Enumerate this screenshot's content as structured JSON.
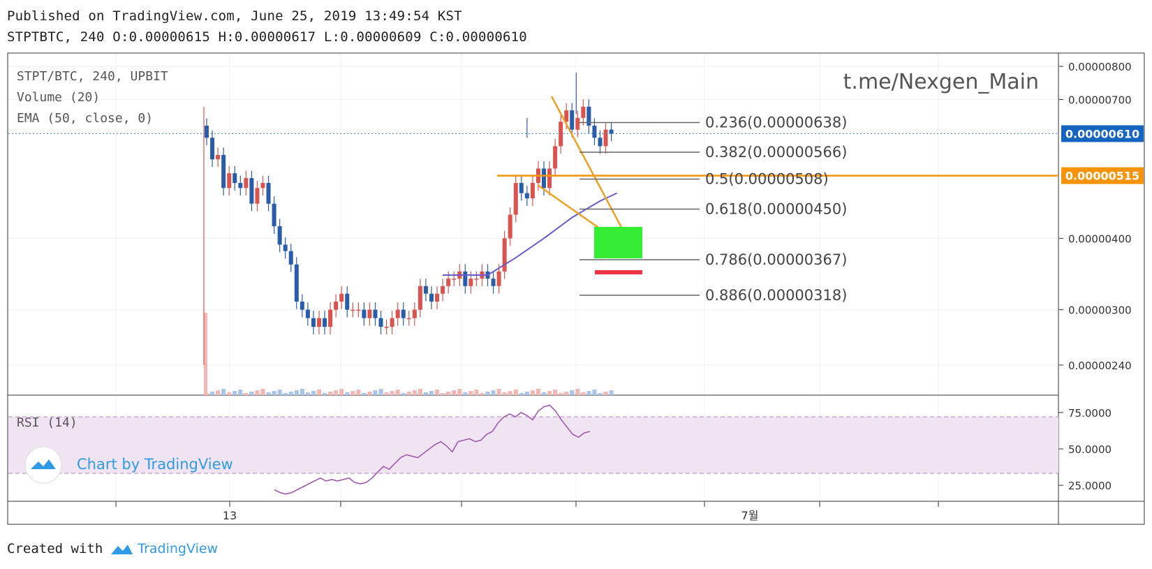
{
  "header": {
    "published": "Published on TradingView.com, June 25, 2019 13:49:54 KST",
    "ohlc": "STPTBTC, 240 O:0.00000615 H:0.00000617 L:0.00000609 C:0.00000610"
  },
  "footer": {
    "created_with": "Created with",
    "brand": "TradingView"
  },
  "watermark": "t.me/Nexgen_Main",
  "badge_text": "Chart by TradingView",
  "colors": {
    "up": "#d9534f",
    "down": "#2a5caa",
    "ema": "#6a5acd",
    "rsi": "#a05ab0",
    "fib": "#f0a020",
    "price_tag": "#1565c0",
    "orange_tag": "#f5930a",
    "target": "#33ee33",
    "stop": "#ee3344"
  },
  "chart_data": [
    {
      "type": "candlestick",
      "symbol": "STPT/BTC, 240, UPBIT",
      "legend": [
        "STPT/BTC, 240, UPBIT",
        "Volume (20)",
        "EMA (50, close, 0)"
      ],
      "y_scale": "log",
      "ylim": [
        2.15e-06,
        8.3e-06
      ],
      "y_ticks": [
        "0.00000800",
        "0.00000700",
        "0.00000400",
        "0.00000300",
        "0.00000240"
      ],
      "x_ticks": [
        "13",
        "7월"
      ],
      "last_price": "0.00000610",
      "horizontal_line": "0.00000515",
      "fib_levels": [
        {
          "label": "0.236(0.00000638)",
          "value": 6.38e-06
        },
        {
          "label": "0.382(0.00000566)",
          "value": 5.66e-06
        },
        {
          "label": "0.5(0.00000508)",
          "value": 5.08e-06
        },
        {
          "label": "0.618(0.00000450)",
          "value": 4.5e-06
        },
        {
          "label": "0.786(0.00000367)",
          "value": 3.67e-06
        },
        {
          "label": "0.886(0.00000318)",
          "value": 3.18e-06
        }
      ],
      "candles_close": [
        6e-06,
        5.5e-06,
        5.6e-06,
        4.9e-06,
        5.2e-06,
        5e-06,
        4.9e-06,
        5.1e-06,
        4.6e-06,
        4.9e-06,
        5e-06,
        4.6e-06,
        4.2e-06,
        3.9e-06,
        3.8e-06,
        3.6e-06,
        3.1e-06,
        3e-06,
        2.9e-06,
        2.8e-06,
        2.9e-06,
        2.8e-06,
        3e-06,
        3.1e-06,
        3.2e-06,
        3e-06,
        3e-06,
        3e-06,
        2.9e-06,
        3e-06,
        2.9e-06,
        2.8e-06,
        2.8e-06,
        2.9e-06,
        3e-06,
        2.9e-06,
        2.9e-06,
        3e-06,
        3.3e-06,
        3.2e-06,
        3.1e-06,
        3.2e-06,
        3.3e-06,
        3.4e-06,
        3.4e-06,
        3.5e-06,
        3.3e-06,
        3.4e-06,
        3.4e-06,
        3.5e-06,
        3.4e-06,
        3.3e-06,
        3.5e-06,
        4e-06,
        4.4e-06,
        5e-06,
        4.8e-06,
        4.7e-06,
        5e-06,
        5.3e-06,
        4.9e-06,
        5.3e-06,
        5.8e-06,
        6.4e-06,
        6.7e-06,
        6.2e-06,
        6.5e-06,
        6.8e-06,
        6.3e-06,
        6e-06,
        5.8e-06,
        6.2e-06,
        6.1e-06
      ],
      "ema": [
        {
          "i": 42,
          "v": 3.45e-06
        },
        {
          "i": 50,
          "v": 3.45e-06
        },
        {
          "i": 55,
          "v": 3.7e-06
        },
        {
          "i": 60,
          "v": 4e-06
        },
        {
          "i": 65,
          "v": 4.35e-06
        },
        {
          "i": 70,
          "v": 4.65e-06
        },
        {
          "i": 73,
          "v": 4.8e-06
        }
      ]
    },
    {
      "type": "line",
      "name": "RSI (14)",
      "ylim": [
        15,
        85
      ],
      "y_ticks": [
        "75.0000",
        "50.0000",
        "25.0000"
      ],
      "bands": [
        70,
        30
      ],
      "values": [
        22,
        20,
        19,
        20,
        22,
        24,
        26,
        28,
        30,
        28,
        29,
        28,
        29,
        30,
        27,
        26,
        27,
        30,
        34,
        38,
        36,
        40,
        44,
        46,
        45,
        44,
        47,
        50,
        53,
        55,
        52,
        48,
        55,
        56,
        57,
        55,
        56,
        60,
        62,
        68,
        72,
        74,
        72,
        75,
        73,
        70,
        76,
        79,
        80,
        76,
        70,
        65,
        60,
        58,
        61,
        62
      ]
    }
  ]
}
